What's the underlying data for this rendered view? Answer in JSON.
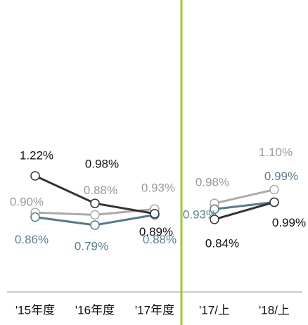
{
  "chart_data": [
    {
      "type": "line",
      "categories": [
        "'15年度",
        "'16年度",
        "'17年度"
      ],
      "series": [
        {
          "color": "#aaaaaa",
          "values": [
            0.9,
            0.88,
            0.93
          ],
          "value_labels": [
            "0.90%",
            "0.88%",
            "0.93%"
          ]
        },
        {
          "color": "#557a8a",
          "values": [
            0.86,
            0.79,
            0.88
          ],
          "value_labels": [
            "0.86%",
            "0.79%",
            "0.88%"
          ]
        },
        {
          "color": "#333333",
          "values": [
            1.22,
            0.98,
            0.89
          ],
          "value_labels": [
            "1.22%",
            "0.98%",
            "0.89%"
          ]
        }
      ]
    },
    {
      "type": "line",
      "categories": [
        "'17/上",
        "'18/上"
      ],
      "series": [
        {
          "color": "#aaaaaa",
          "values": [
            0.98,
            1.1
          ],
          "value_labels": [
            "0.98%",
            "1.10%"
          ]
        },
        {
          "color": "#557a8a",
          "values": [
            0.93,
            0.99
          ],
          "value_labels": [
            "0.93%",
            "0.99%"
          ]
        },
        {
          "color": "#333333",
          "values": [
            0.84,
            0.99
          ],
          "value_labels": [
            "0.84%",
            "0.99%"
          ]
        }
      ]
    }
  ]
}
